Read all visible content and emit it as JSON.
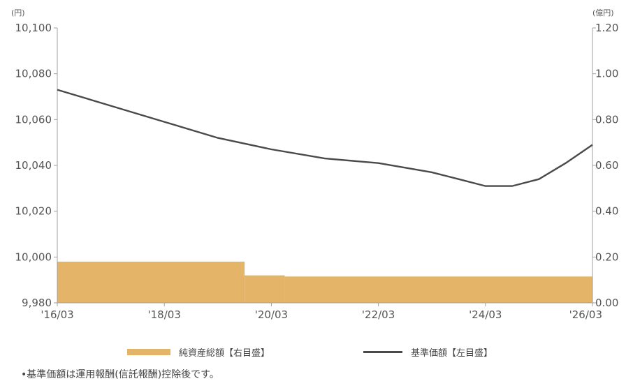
{
  "colors": {
    "nav_line": "#4a4a4a",
    "assets_bar": "#e4b468",
    "axis": "#a0a0a0"
  },
  "left_axis": {
    "unit": "(円)",
    "ticks": [
      "10,100",
      "10,080",
      "10,060",
      "10,040",
      "10,020",
      "10,000",
      "9,980"
    ]
  },
  "right_axis": {
    "unit": "(億円)",
    "ticks": [
      "1.20",
      "1.00",
      "0.80",
      "0.60",
      "0.40",
      "0.20",
      "0.00"
    ]
  },
  "x_ticks": [
    "'16/03",
    "'18/03",
    "'20/03",
    "'22/03",
    "'24/03",
    "'26/03"
  ],
  "legend": {
    "bar_label": "純資産総額【右目盛】",
    "line_label": "基準価額【左目盛】"
  },
  "footnote": "•基準価額は運用報酬(信託報酬)控除後です。",
  "chart_data": {
    "type": "bar+line",
    "x_range": [
      "2016-03",
      "2026-03"
    ],
    "ylim_left": [
      9980,
      10100
    ],
    "ylim_right": [
      0,
      1.2
    ],
    "series": [
      {
        "name": "純資産総額【右目盛】",
        "type": "bar",
        "axis": "right",
        "points": [
          {
            "x": "2016-03",
            "y": 0.18
          },
          {
            "x": "2019-09",
            "y": 0.12
          },
          {
            "x": "2020-06",
            "y": 0.115
          },
          {
            "x": "2026-03",
            "y": 0.115
          }
        ]
      },
      {
        "name": "基準価額【左目盛】",
        "type": "line",
        "axis": "left",
        "points": [
          {
            "x": "2016-03",
            "y": 10073
          },
          {
            "x": "2017-03",
            "y": 10066
          },
          {
            "x": "2018-03",
            "y": 10059
          },
          {
            "x": "2019-03",
            "y": 10052
          },
          {
            "x": "2020-03",
            "y": 10047
          },
          {
            "x": "2021-03",
            "y": 10043
          },
          {
            "x": "2022-03",
            "y": 10041
          },
          {
            "x": "2023-03",
            "y": 10037
          },
          {
            "x": "2023-09",
            "y": 10034
          },
          {
            "x": "2024-03",
            "y": 10031
          },
          {
            "x": "2024-09",
            "y": 10031
          },
          {
            "x": "2025-03",
            "y": 10034
          },
          {
            "x": "2025-09",
            "y": 10041
          },
          {
            "x": "2026-03",
            "y": 10049
          }
        ]
      }
    ]
  }
}
